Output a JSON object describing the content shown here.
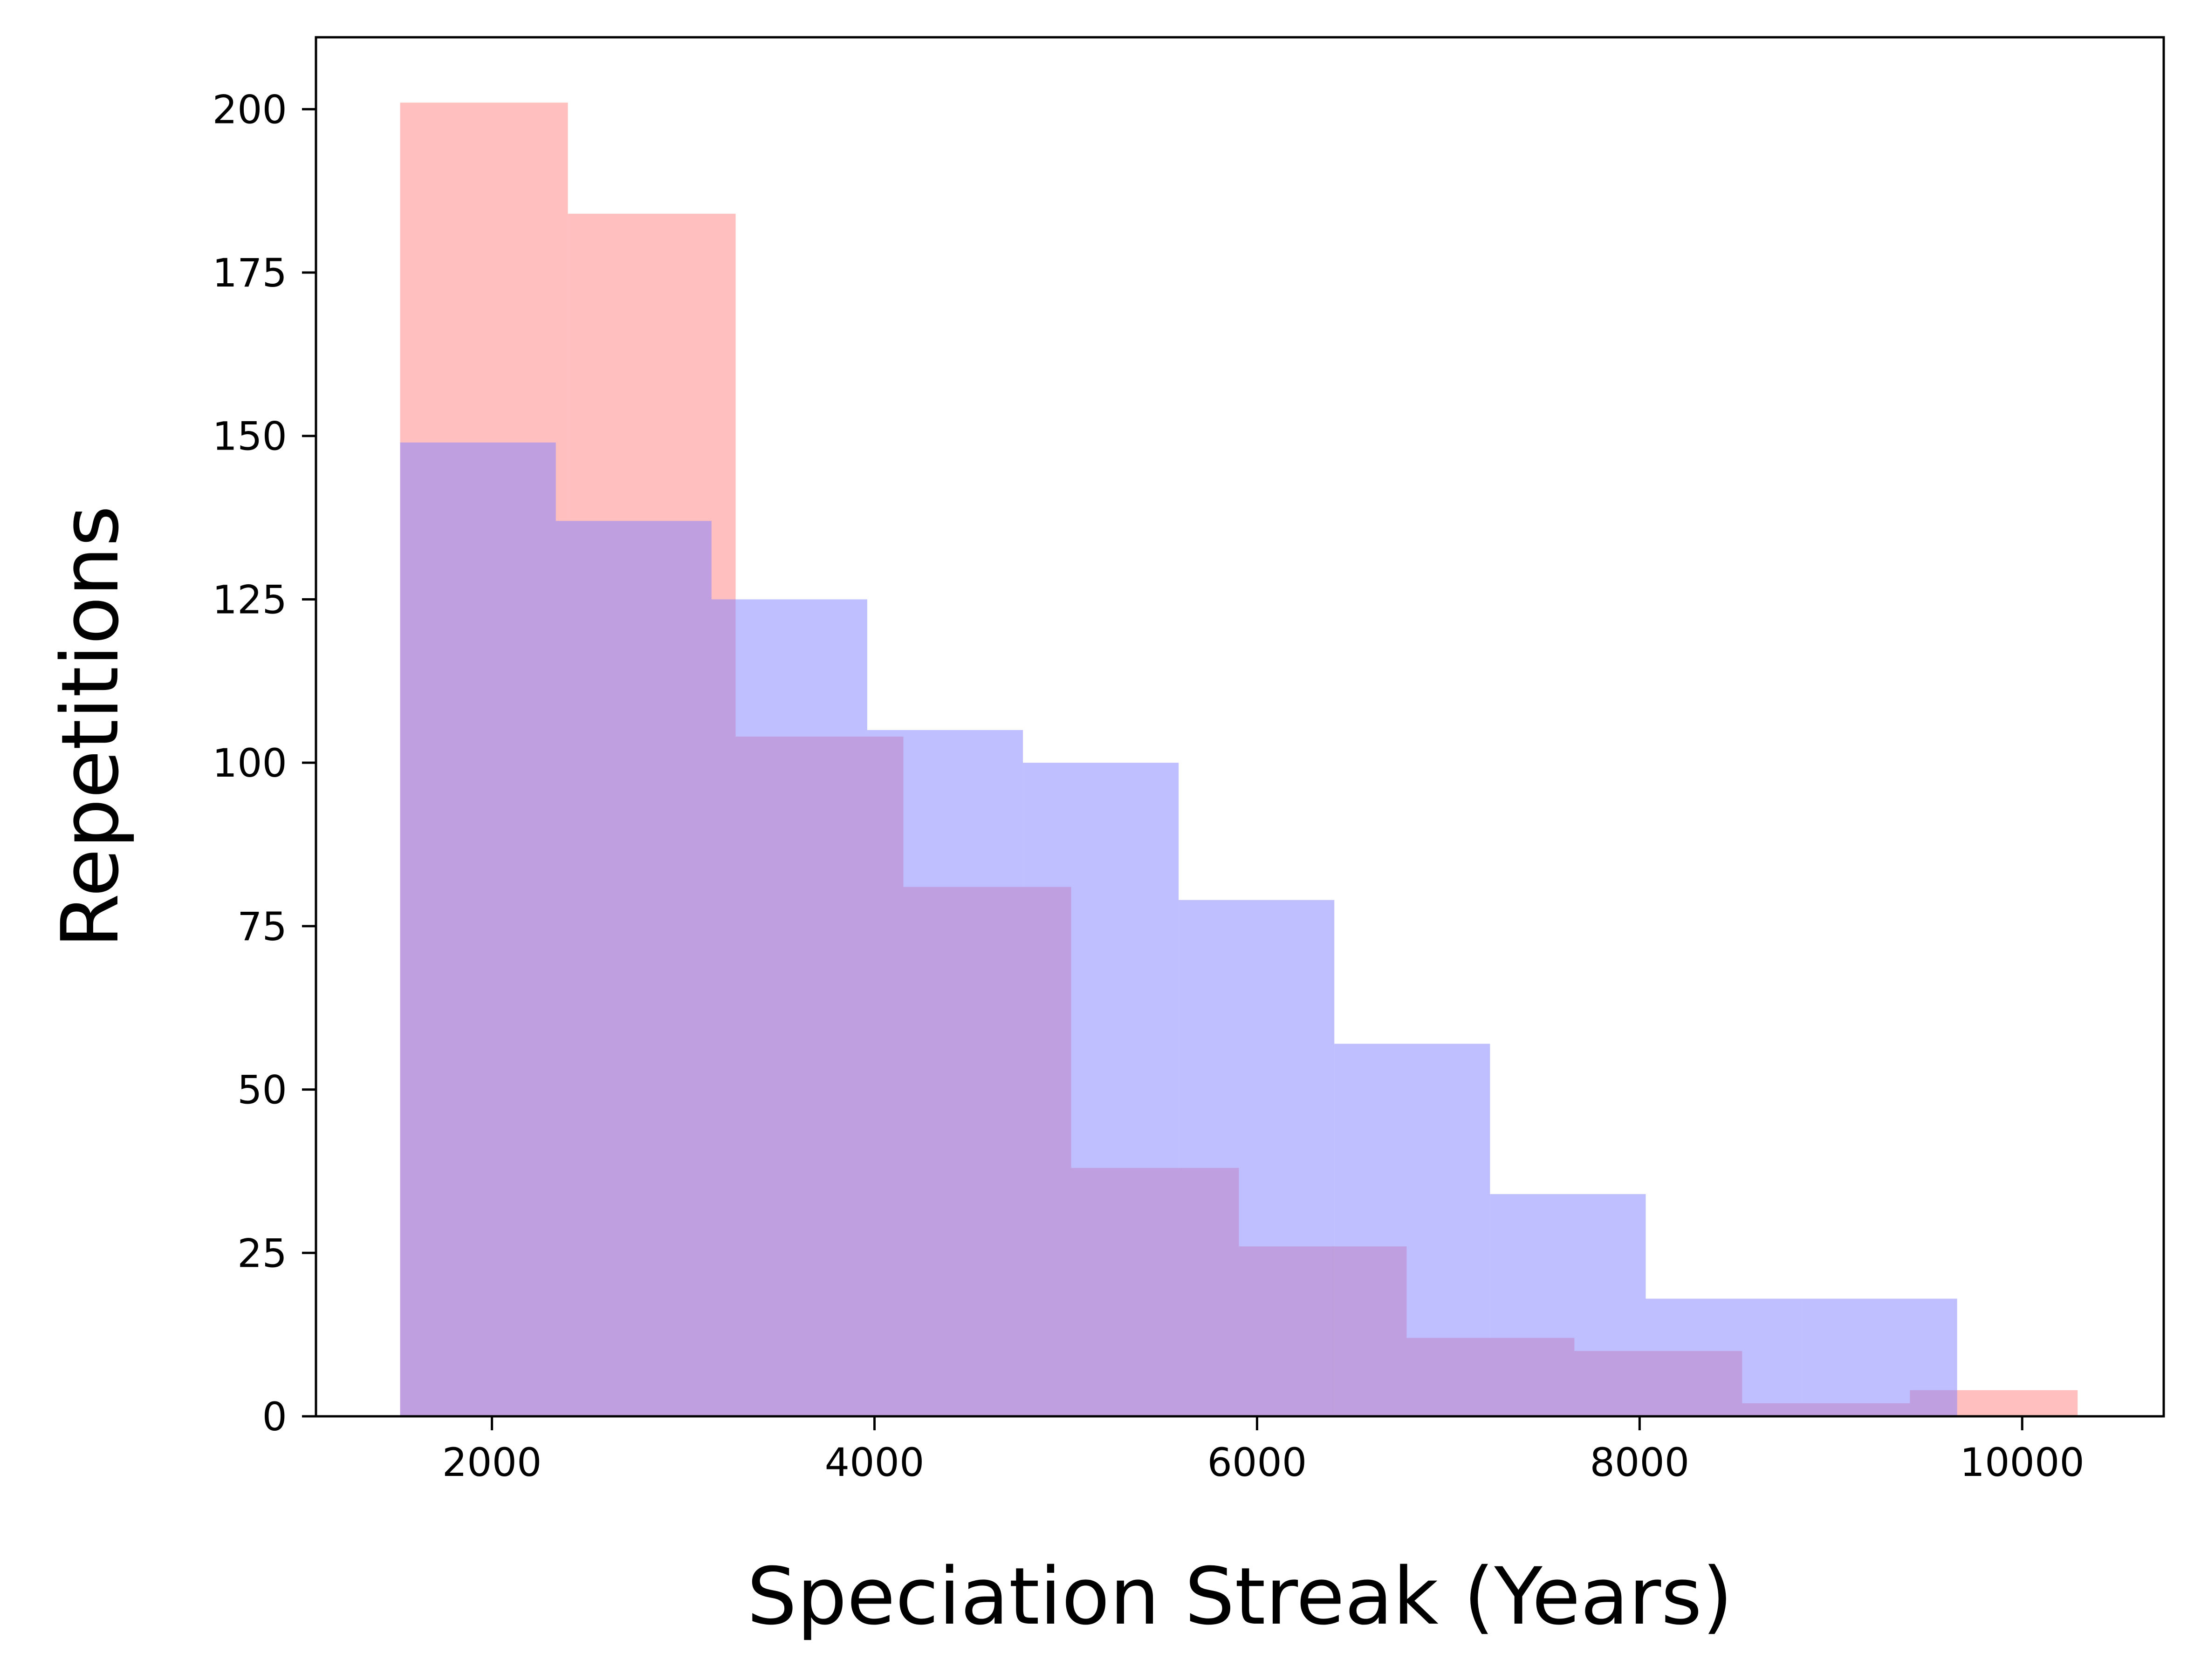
{
  "chart_data": {
    "type": "histogram",
    "title": "",
    "xlabel": "Speciation Streak (Years)",
    "ylabel": "Repetitions",
    "xlim": [
      1080,
      10740
    ],
    "ylim": [
      0,
      211
    ],
    "x_ticks": [
      2000,
      4000,
      6000,
      8000,
      10000
    ],
    "y_ticks": [
      0,
      25,
      50,
      75,
      100,
      125,
      150,
      175,
      200
    ],
    "x_tick_labels": [
      "2000",
      "4000",
      "6000",
      "8000",
      "10000"
    ],
    "y_tick_labels": [
      "0",
      "25",
      "50",
      "75",
      "100",
      "125",
      "150",
      "175",
      "200"
    ],
    "grid": false,
    "legend": null,
    "overlap_color": "#c090d0",
    "series": [
      {
        "color": "#ff8080",
        "opacity": 0.5,
        "bin_edges": [
          1520,
          2397,
          3274,
          4151,
          5028,
          5905,
          6782,
          7659,
          8536,
          9413,
          10290
        ],
        "counts": [
          201,
          184,
          104,
          81,
          38,
          26,
          12,
          10,
          2,
          4
        ]
      },
      {
        "color": "#8080ff",
        "opacity": 0.5,
        "bin_edges": [
          1520,
          2334,
          3148,
          3962,
          4776,
          5590,
          6404,
          7218,
          8032,
          8846,
          9660
        ],
        "counts": [
          149,
          137,
          125,
          105,
          100,
          79,
          57,
          34,
          18,
          18
        ]
      }
    ]
  }
}
